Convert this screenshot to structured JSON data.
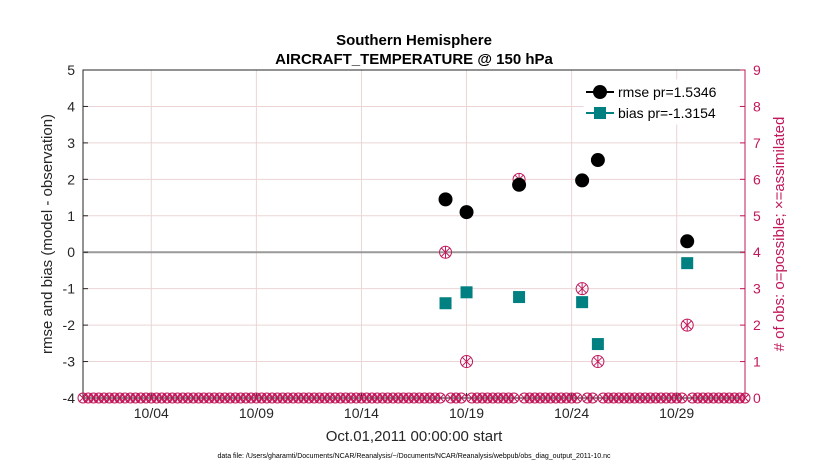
{
  "chart_data": {
    "type": "scatter",
    "title": "Southern Hemisphere",
    "subtitle": "AIRCRAFT_TEMPERATURE @ 150 hPa",
    "xlabel": "Oct.01,2011 00:00:00 start",
    "ylabel": "rmse and bias (model - observation)",
    "ylabel_right": "# of obs: o=possible; ×=assimilated",
    "footnote": "data file: /Users/gharamti/Documents/NCAR/Reanalysis/~/Documents/NCAR/Reanalysis/webpub/obs_diag_output_2011-10.nc",
    "xlim": [
      0.25,
      31.75
    ],
    "ylim": [
      -4,
      5
    ],
    "ylim_right": [
      0,
      9
    ],
    "grid": true,
    "x_ticks": [
      3.5,
      8.5,
      13.5,
      18.5,
      23.5,
      28.5
    ],
    "x_tick_labels": [
      "10/04",
      "10/09",
      "10/14",
      "10/19",
      "10/24",
      "10/29"
    ],
    "y_ticks": [
      -4,
      -3,
      -2,
      -1,
      0,
      1,
      2,
      3,
      4,
      5
    ],
    "y_tick_labels": [
      "-4",
      "-3",
      "-2",
      "-1",
      "0",
      "1",
      "2",
      "3",
      "4",
      "5"
    ],
    "y_ticks_right": [
      0,
      1,
      2,
      3,
      4,
      5,
      6,
      7,
      8,
      9
    ],
    "y_tick_labels_right": [
      "0",
      "1",
      "2",
      "3",
      "4",
      "5",
      "6",
      "7",
      "8",
      "9"
    ],
    "legend_position": "top-right",
    "series": [
      {
        "name": "rmse pr=1.5346",
        "color": "#000000",
        "marker": "circle",
        "x": [
          17.5,
          18.5,
          21.0,
          24.0,
          24.75,
          29.0
        ],
        "values": [
          1.45,
          1.1,
          1.85,
          1.97,
          2.53,
          0.3
        ]
      },
      {
        "name": "bias pr=-1.3154",
        "color": "#008080",
        "marker": "square",
        "x": [
          17.5,
          18.5,
          21.0,
          24.0,
          24.75,
          29.0
        ],
        "values": [
          -1.4,
          -1.1,
          -1.23,
          -1.37,
          -2.52,
          -0.3
        ]
      }
    ],
    "obs_counts": {
      "color": "#c2185b",
      "x": [
        17.5,
        18.5,
        21.0,
        24.0,
        24.75,
        29.0
      ],
      "possible": [
        4,
        1,
        6,
        3,
        1,
        2
      ],
      "assimilated": [
        4,
        1,
        6,
        3,
        1,
        2
      ],
      "zero_step": 0.25
    }
  }
}
